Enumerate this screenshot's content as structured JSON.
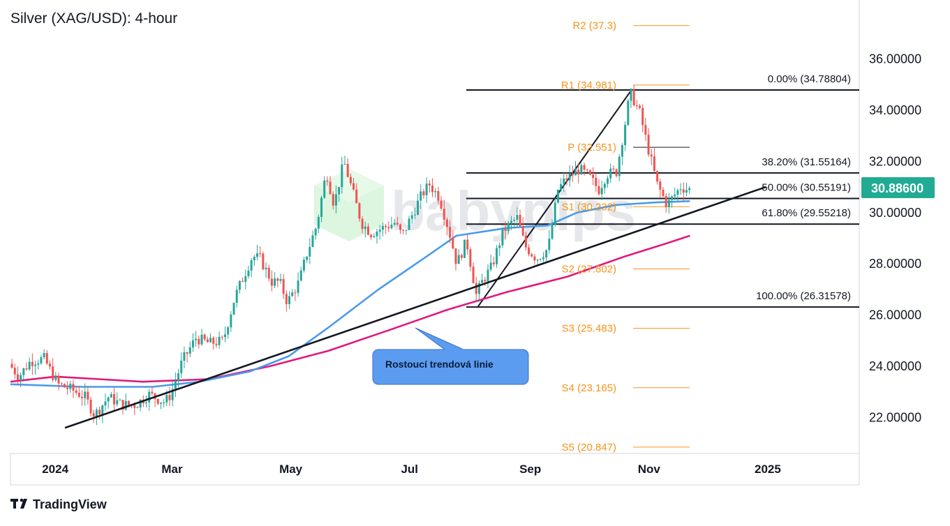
{
  "chart_data": {
    "type": "candlestick",
    "title": "Silver (XAG/USD): 4-hour",
    "ylim": [
      20.6,
      38.3
    ],
    "xlim": [
      "2023-12-09",
      "2025-02-17"
    ],
    "y_ticks": [
      "22.00000",
      "24.00000",
      "26.00000",
      "28.00000",
      "30.00000",
      "32.00000",
      "34.00000",
      "36.00000"
    ],
    "x_ticks": [
      {
        "label": "2024",
        "date": "2024-01-01"
      },
      {
        "label": "Mar",
        "date": "2024-03-01"
      },
      {
        "label": "May",
        "date": "2024-05-01"
      },
      {
        "label": "Jul",
        "date": "2024-07-01"
      },
      {
        "label": "Sep",
        "date": "2024-09-01"
      },
      {
        "label": "Nov",
        "date": "2024-11-01"
      },
      {
        "label": "2025",
        "date": "2025-01-01"
      }
    ],
    "last_price": {
      "label": "30.88600",
      "value": 30.886,
      "color": "#22ab94"
    },
    "price_path": [
      [
        "2023-12-09",
        24.1
      ],
      [
        "2023-12-14",
        23.6
      ],
      [
        "2023-12-20",
        24.2
      ],
      [
        "2023-12-27",
        24.3
      ],
      [
        "2024-01-03",
        23.3
      ],
      [
        "2024-01-10",
        23.1
      ],
      [
        "2024-01-17",
        22.8
      ],
      [
        "2024-01-22",
        22.1
      ],
      [
        "2024-01-29",
        22.8
      ],
      [
        "2024-02-05",
        22.5
      ],
      [
        "2024-02-12",
        22.5
      ],
      [
        "2024-02-19",
        22.9
      ],
      [
        "2024-02-27",
        22.6
      ],
      [
        "2024-03-01",
        22.9
      ],
      [
        "2024-03-07",
        24.2
      ],
      [
        "2024-03-14",
        25.1
      ],
      [
        "2024-03-21",
        24.9
      ],
      [
        "2024-03-28",
        25.0
      ],
      [
        "2024-04-03",
        26.7
      ],
      [
        "2024-04-08",
        27.6
      ],
      [
        "2024-04-12",
        28.3
      ],
      [
        "2024-04-16",
        28.2
      ],
      [
        "2024-04-22",
        27.3
      ],
      [
        "2024-04-26",
        27.3
      ],
      [
        "2024-04-30",
        26.5
      ],
      [
        "2024-05-06",
        27.3
      ],
      [
        "2024-05-10",
        28.4
      ],
      [
        "2024-05-15",
        29.5
      ],
      [
        "2024-05-20",
        31.6
      ],
      [
        "2024-05-24",
        30.3
      ],
      [
        "2024-05-29",
        32.0
      ],
      [
        "2024-06-03",
        30.7
      ],
      [
        "2024-06-07",
        29.6
      ],
      [
        "2024-06-12",
        29.2
      ],
      [
        "2024-06-18",
        29.4
      ],
      [
        "2024-06-24",
        29.6
      ],
      [
        "2024-06-28",
        29.1
      ],
      [
        "2024-07-03",
        29.9
      ],
      [
        "2024-07-08",
        30.7
      ],
      [
        "2024-07-12",
        31.1
      ],
      [
        "2024-07-17",
        30.6
      ],
      [
        "2024-07-22",
        29.3
      ],
      [
        "2024-07-26",
        28.0
      ],
      [
        "2024-07-31",
        28.9
      ],
      [
        "2024-08-05",
        26.8
      ],
      [
        "2024-08-08",
        27.3
      ],
      [
        "2024-08-13",
        27.9
      ],
      [
        "2024-08-19",
        29.3
      ],
      [
        "2024-08-26",
        29.8
      ],
      [
        "2024-08-30",
        28.7
      ],
      [
        "2024-09-05",
        28.2
      ],
      [
        "2024-09-11",
        28.6
      ],
      [
        "2024-09-16",
        30.9
      ],
      [
        "2024-09-20",
        31.3
      ],
      [
        "2024-09-27",
        31.7
      ],
      [
        "2024-10-02",
        31.4
      ],
      [
        "2024-10-07",
        30.9
      ],
      [
        "2024-10-11",
        31.5
      ],
      [
        "2024-10-16",
        31.6
      ],
      [
        "2024-10-21",
        33.7
      ],
      [
        "2024-10-23",
        34.7
      ],
      [
        "2024-10-28",
        33.9
      ],
      [
        "2024-11-01",
        32.6
      ],
      [
        "2024-11-06",
        31.1
      ],
      [
        "2024-11-11",
        30.3
      ],
      [
        "2024-11-14",
        30.6
      ],
      [
        "2024-11-18",
        31.0
      ],
      [
        "2024-11-22",
        30.9
      ]
    ],
    "sma_blue": {
      "color": "#4a9be8",
      "points": [
        [
          "2023-12-09",
          23.3
        ],
        [
          "2024-01-15",
          23.2
        ],
        [
          "2024-02-20",
          23.2
        ],
        [
          "2024-03-15",
          23.4
        ],
        [
          "2024-04-10",
          23.8
        ],
        [
          "2024-04-30",
          24.4
        ],
        [
          "2024-05-20",
          25.5
        ],
        [
          "2024-06-15",
          27.0
        ],
        [
          "2024-07-10",
          28.3
        ],
        [
          "2024-07-25",
          29.1
        ],
        [
          "2024-08-20",
          29.4
        ],
        [
          "2024-09-10",
          29.5
        ],
        [
          "2024-09-25",
          30.0
        ],
        [
          "2024-10-15",
          30.3
        ],
        [
          "2024-11-05",
          30.4
        ],
        [
          "2024-11-22",
          30.45
        ]
      ]
    },
    "sma_magenta": {
      "color": "#e0197d",
      "points": [
        [
          "2023-12-09",
          23.4
        ],
        [
          "2024-01-01",
          23.6
        ],
        [
          "2024-02-15",
          23.4
        ],
        [
          "2024-03-20",
          23.5
        ],
        [
          "2024-04-20",
          24.0
        ],
        [
          "2024-05-20",
          24.6
        ],
        [
          "2024-06-20",
          25.4
        ],
        [
          "2024-07-20",
          26.2
        ],
        [
          "2024-08-20",
          26.9
        ],
        [
          "2024-09-20",
          27.5
        ],
        [
          "2024-10-20",
          28.3
        ],
        [
          "2024-11-10",
          28.8
        ],
        [
          "2024-11-22",
          29.1
        ]
      ]
    },
    "trendline": {
      "start": [
        "2024-01-06",
        21.6
      ],
      "end": [
        "2024-12-31",
        31.0
      ],
      "callout": "Rostoucí trendová linie"
    },
    "fib_anchor": {
      "start": [
        "2024-08-05",
        26.31578
      ],
      "end": [
        "2024-10-23",
        34.78804
      ]
    },
    "fib_levels": [
      {
        "label": "0.00% (34.78804)",
        "value": 34.78804
      },
      {
        "label": "38.20% (31.55164)",
        "value": 31.55164
      },
      {
        "label": "50.00% (30.55191)",
        "value": 30.55191
      },
      {
        "label": "61.80% (29.55218)",
        "value": 29.55218
      },
      {
        "label": "100.00% (26.31578)",
        "value": 26.31578
      }
    ],
    "pivot_levels": [
      {
        "label": "R2 (37.3)",
        "value": 37.3,
        "kind": "orange"
      },
      {
        "label": "R1 (34.981)",
        "value": 34.981,
        "kind": "orange"
      },
      {
        "label": "P (32.551)",
        "value": 32.551,
        "kind": "black"
      },
      {
        "label": "S1 (30.232)",
        "value": 30.232,
        "kind": "orange"
      },
      {
        "label": "S2 (27.802)",
        "value": 27.802,
        "kind": "orange"
      },
      {
        "label": "S3 (25.483)",
        "value": 25.483,
        "kind": "orange"
      },
      {
        "label": "S4 (23.165)",
        "value": 23.165,
        "kind": "orange"
      },
      {
        "label": "S5 (20.847)",
        "value": 20.847,
        "kind": "orange"
      }
    ],
    "watermark": "babypips",
    "colors": {
      "up": "#26a69a",
      "down": "#ef5350",
      "pivot": "#f7931a",
      "callout_fill": "#5b9cf0"
    }
  },
  "footer": {
    "brand": "TradingView"
  }
}
